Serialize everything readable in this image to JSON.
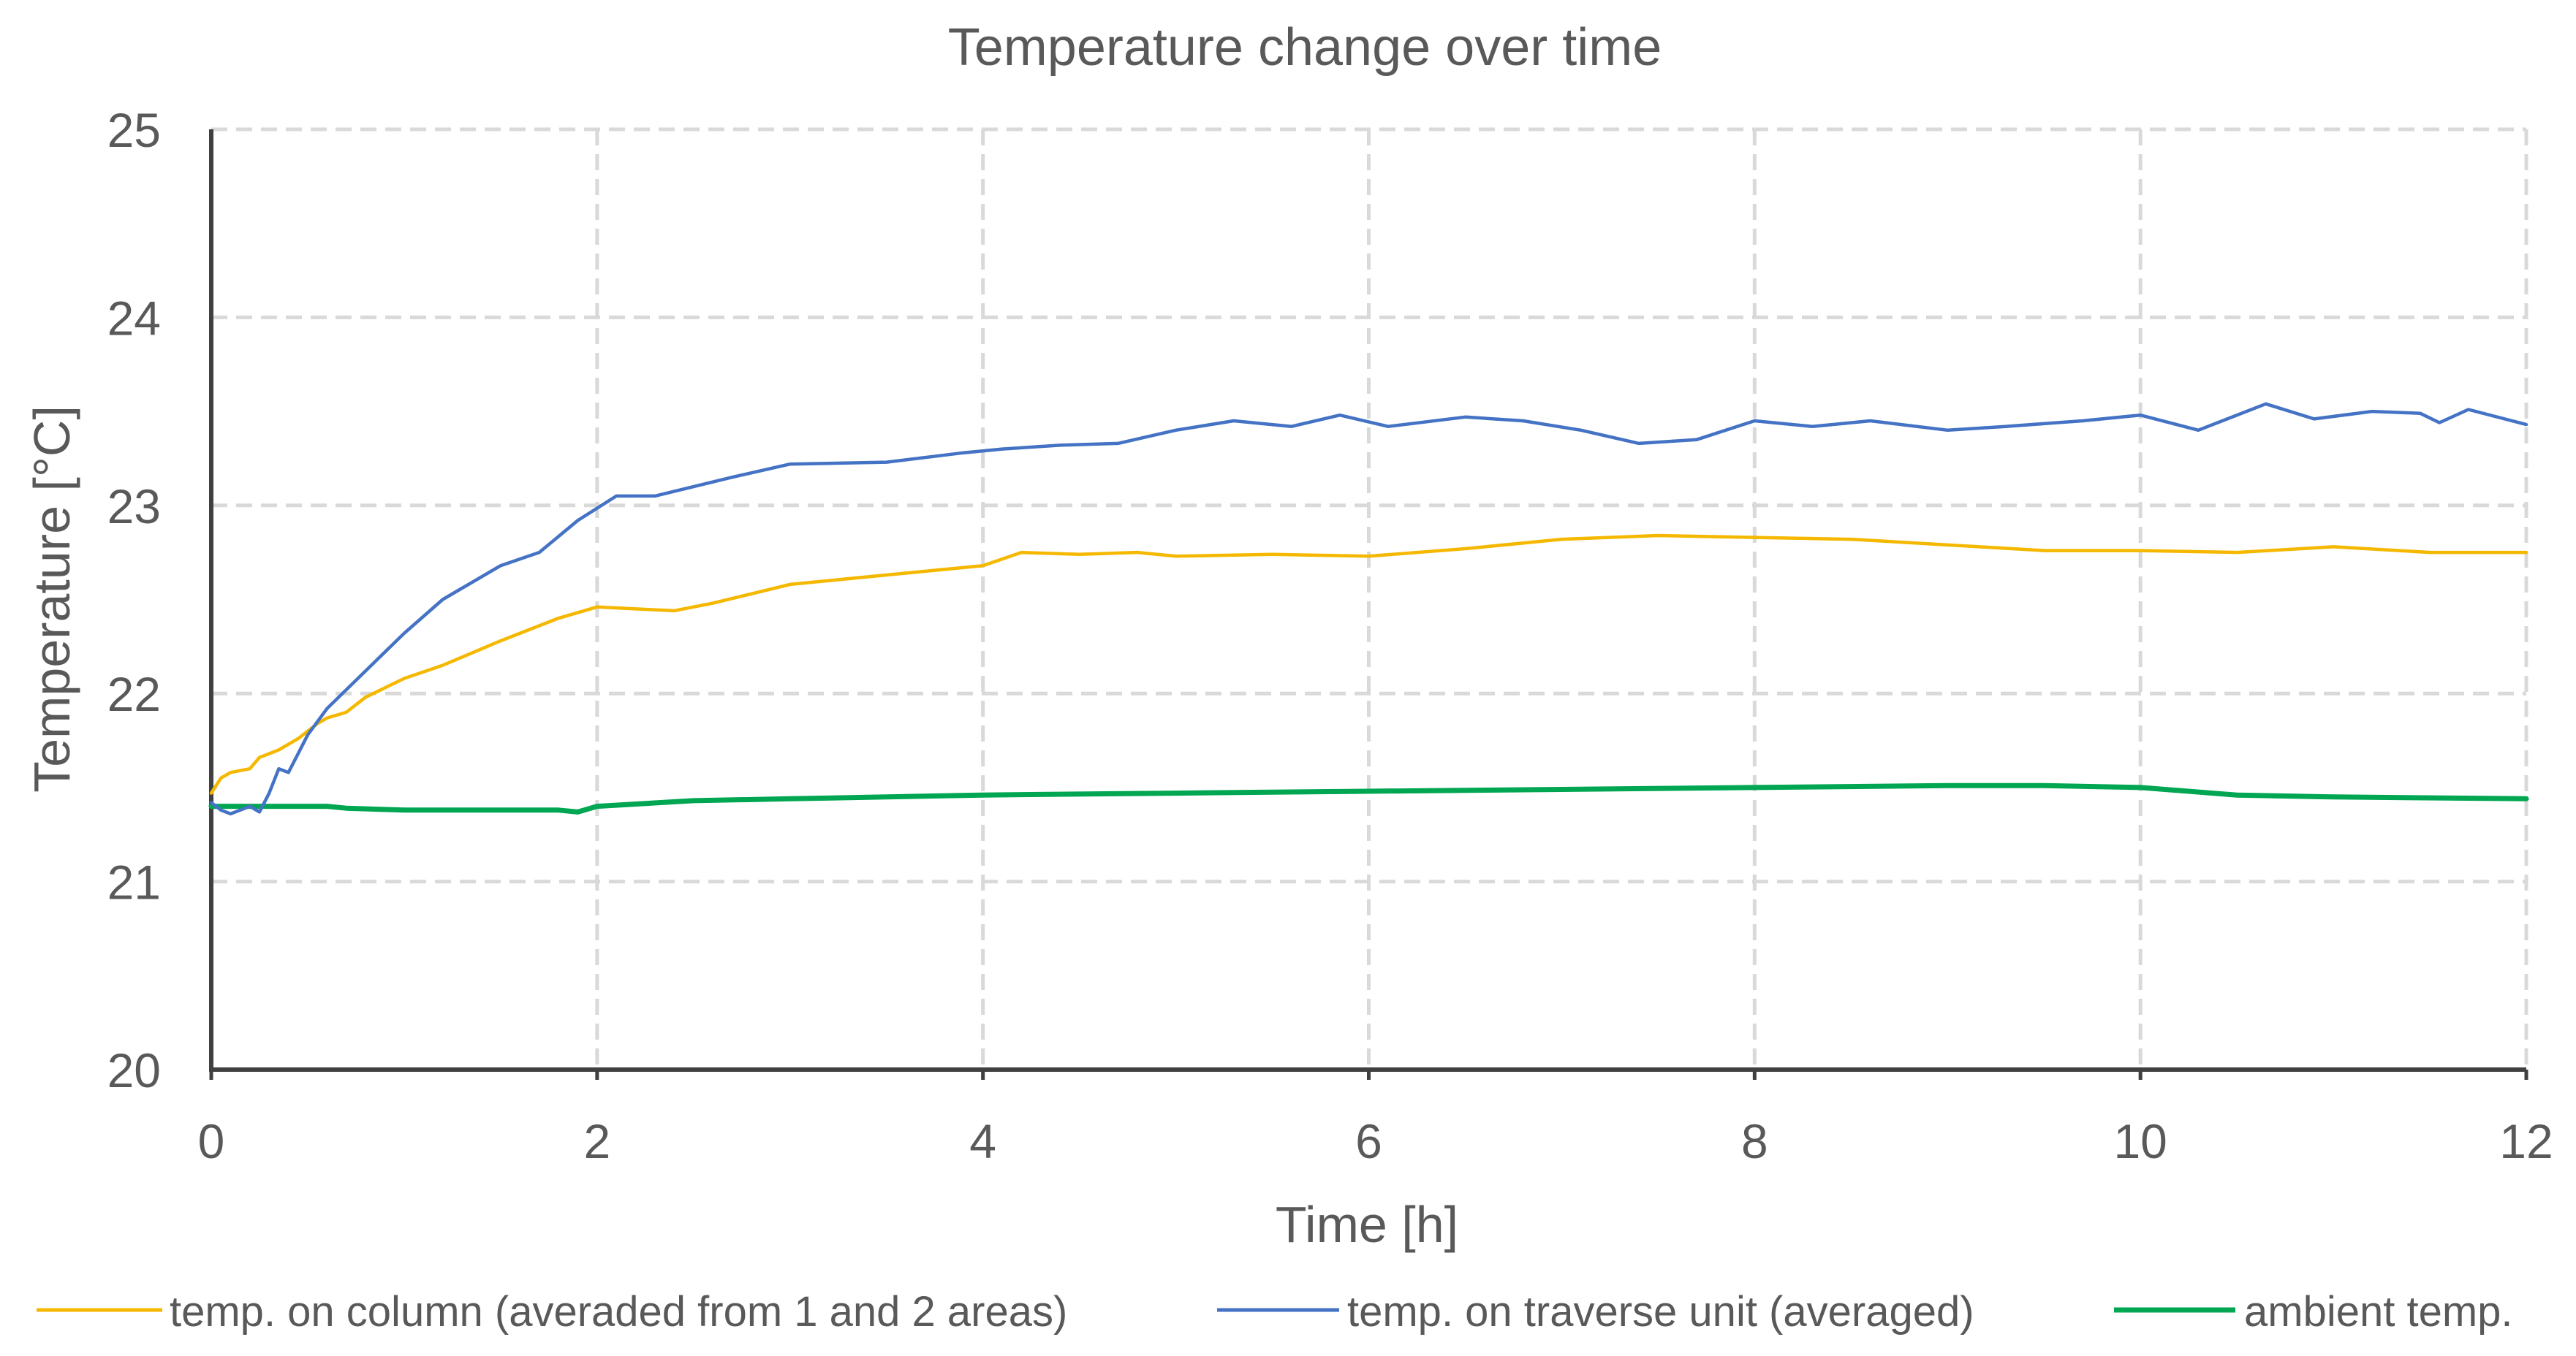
{
  "chart_data": {
    "type": "line",
    "title": "Temperature change over time",
    "xlabel": "Time [h]",
    "ylabel": "Temperature [°C]",
    "xlim": [
      0,
      12
    ],
    "ylim": [
      20,
      25
    ],
    "x_ticks": [
      0,
      2,
      4,
      6,
      8,
      10,
      12
    ],
    "y_ticks": [
      20,
      21,
      22,
      23,
      24,
      25
    ],
    "grid": true,
    "legend_position": "bottom",
    "series": [
      {
        "name": "temp. on column (averaded from 1 and 2 areas)",
        "color": "#F5B800",
        "x": [
          0,
          0.05,
          0.1,
          0.2,
          0.25,
          0.3,
          0.35,
          0.4,
          0.45,
          0.5,
          0.55,
          0.6,
          0.7,
          0.8,
          1.0,
          1.2,
          1.5,
          1.8,
          2.0,
          2.2,
          2.4,
          2.6,
          3.0,
          3.5,
          4.0,
          4.2,
          4.5,
          4.8,
          5.0,
          5.5,
          6.0,
          6.5,
          7.0,
          7.5,
          8.0,
          8.5,
          9.0,
          9.5,
          10.0,
          10.5,
          11.0,
          11.5,
          12.0
        ],
        "values": [
          21.47,
          21.55,
          21.58,
          21.6,
          21.66,
          21.68,
          21.7,
          21.73,
          21.76,
          21.8,
          21.84,
          21.87,
          21.9,
          21.98,
          22.08,
          22.15,
          22.28,
          22.4,
          22.46,
          22.45,
          22.44,
          22.48,
          22.58,
          22.63,
          22.68,
          22.75,
          22.74,
          22.75,
          22.73,
          22.74,
          22.73,
          22.77,
          22.82,
          22.84,
          22.83,
          22.82,
          22.79,
          22.76,
          22.76,
          22.75,
          22.78,
          22.75,
          22.75
        ]
      },
      {
        "name": "temp. on traverse unit (averaged)",
        "color": "#4472C4",
        "x": [
          0,
          0.05,
          0.1,
          0.15,
          0.2,
          0.25,
          0.3,
          0.35,
          0.4,
          0.45,
          0.5,
          0.6,
          0.8,
          1.0,
          1.2,
          1.5,
          1.7,
          1.9,
          2.1,
          2.3,
          2.5,
          2.7,
          3.0,
          3.5,
          3.9,
          4.1,
          4.4,
          4.7,
          5.0,
          5.3,
          5.6,
          5.85,
          6.1,
          6.5,
          6.8,
          7.1,
          7.4,
          7.7,
          8.0,
          8.3,
          8.6,
          9.0,
          9.3,
          9.7,
          10.0,
          10.3,
          10.65,
          10.9,
          11.2,
          11.45,
          11.55,
          11.7,
          12.0
        ],
        "values": [
          21.42,
          21.38,
          21.36,
          21.38,
          21.4,
          21.37,
          21.47,
          21.6,
          21.58,
          21.68,
          21.78,
          21.92,
          22.12,
          22.32,
          22.5,
          22.68,
          22.75,
          22.92,
          23.05,
          23.05,
          23.1,
          23.15,
          23.22,
          23.23,
          23.28,
          23.3,
          23.32,
          23.33,
          23.4,
          23.45,
          23.42,
          23.48,
          23.42,
          23.47,
          23.45,
          23.4,
          23.33,
          23.35,
          23.45,
          23.42,
          23.45,
          23.4,
          23.42,
          23.45,
          23.48,
          23.4,
          23.54,
          23.46,
          23.5,
          23.49,
          23.44,
          23.51,
          23.43
        ]
      },
      {
        "name": "ambient temp.",
        "color": "#00A651",
        "x": [
          0,
          0.6,
          0.7,
          1.0,
          1.5,
          1.8,
          1.9,
          2.0,
          2.5,
          3.0,
          4.0,
          5.0,
          6.0,
          7.0,
          8.0,
          9.0,
          9.5,
          10.0,
          10.5,
          11.0,
          12.0
        ],
        "values": [
          21.4,
          21.4,
          21.39,
          21.38,
          21.38,
          21.38,
          21.37,
          21.4,
          21.43,
          21.44,
          21.46,
          21.47,
          21.48,
          21.49,
          21.5,
          21.51,
          21.51,
          21.5,
          21.46,
          21.45,
          21.44
        ]
      }
    ]
  }
}
